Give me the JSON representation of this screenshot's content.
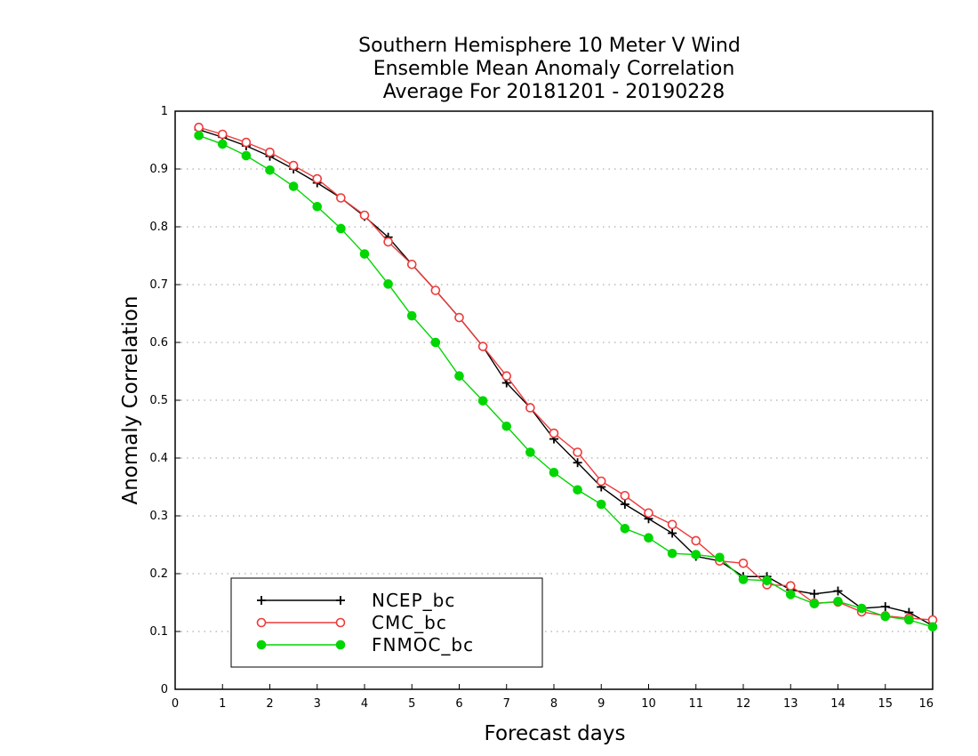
{
  "chart_data": {
    "type": "line",
    "title": [
      "Southern Hemisphere 10 Meter V Wind",
      "Ensemble Mean Anomaly Correlation",
      "Average For 20181201 - 20190228"
    ],
    "xlabel": "Forecast days",
    "ylabel": "Anomaly Correlation",
    "xlim": [
      0,
      16
    ],
    "ylim": [
      0,
      1
    ],
    "xticks": [
      "0",
      "1",
      "2",
      "3",
      "4",
      "5",
      "6",
      "7",
      "8",
      "9",
      "10",
      "11",
      "12",
      "13",
      "14",
      "15",
      "16"
    ],
    "yticks": [
      "0",
      "0.1",
      "0.2",
      "0.3",
      "0.4",
      "0.5",
      "0.6",
      "0.7",
      "0.8",
      "0.9",
      "1"
    ],
    "grid": "horizontal-dotted",
    "legend_position": "bottom-left",
    "x": [
      0.5,
      1,
      1.5,
      2,
      2.5,
      3,
      3.5,
      4,
      4.5,
      5,
      5.5,
      6,
      6.5,
      7,
      7.5,
      8,
      8.5,
      9,
      9.5,
      10,
      10.5,
      11,
      11.5,
      12,
      12.5,
      13,
      13.5,
      14,
      14.5,
      15,
      15.5,
      16
    ],
    "series": [
      {
        "name": "NCEP_bc",
        "color": "#000000",
        "marker": "plus",
        "values": [
          0.968,
          0.955,
          0.94,
          0.922,
          0.9,
          0.876,
          0.85,
          0.818,
          0.782,
          0.735,
          0.69,
          0.643,
          0.593,
          0.53,
          0.487,
          0.433,
          0.392,
          0.35,
          0.32,
          0.295,
          0.27,
          0.23,
          0.222,
          0.195,
          0.195,
          0.172,
          0.165,
          0.17,
          0.14,
          0.143,
          0.133,
          0.11
        ]
      },
      {
        "name": "CMC_bc",
        "color": "#ee3b3b",
        "marker": "open-circle",
        "values": [
          0.972,
          0.96,
          0.946,
          0.929,
          0.906,
          0.883,
          0.85,
          0.82,
          0.774,
          0.735,
          0.69,
          0.643,
          0.593,
          0.542,
          0.487,
          0.443,
          0.41,
          0.36,
          0.335,
          0.305,
          0.285,
          0.257,
          0.222,
          0.218,
          0.181,
          0.179,
          0.149,
          0.151,
          0.134,
          0.127,
          0.123,
          0.12
        ]
      },
      {
        "name": "FNMOC_bc",
        "color": "#00d600",
        "marker": "filled-circle",
        "values": [
          0.958,
          0.943,
          0.923,
          0.898,
          0.87,
          0.835,
          0.797,
          0.753,
          0.701,
          0.646,
          0.6,
          0.542,
          0.499,
          0.455,
          0.41,
          0.375,
          0.345,
          0.32,
          0.278,
          0.262,
          0.235,
          0.233,
          0.228,
          0.19,
          0.188,
          0.164,
          0.148,
          0.152,
          0.14,
          0.126,
          0.12,
          0.108
        ]
      }
    ]
  }
}
